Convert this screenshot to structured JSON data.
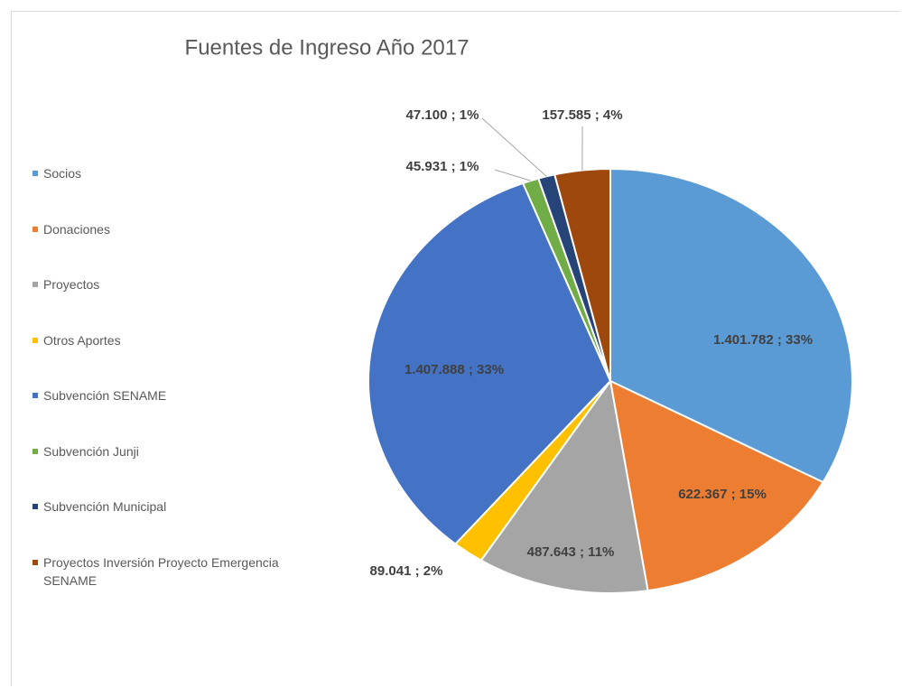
{
  "chart_data": {
    "type": "pie",
    "title": "Fuentes de Ingreso Año 2017",
    "categories": [
      "Socios",
      "Donaciones",
      "Proyectos",
      "Otros Aportes",
      "Subvención SENAME",
      "Subvención Junji",
      "Subvención Municipal",
      "Proyectos Inversión Proyecto Emergencia SENAME"
    ],
    "values": [
      1401782,
      622367,
      487643,
      89041,
      1407888,
      45931,
      47100,
      157585
    ],
    "value_labels": [
      "1.401.782 ; 33%",
      "622.367 ; 15%",
      "487.643 ; 11%",
      "89.041 ; 2%",
      "1.407.888 ; 33%",
      "45.931 ; 1%",
      "47.100 ; 1%",
      "157.585 ; 4%"
    ],
    "colors": [
      "#5b9bd5",
      "#ed7d31",
      "#a5a5a5",
      "#ffc000",
      "#4472c4",
      "#70ad47",
      "#264478",
      "#9e480e"
    ],
    "legend": "left"
  }
}
